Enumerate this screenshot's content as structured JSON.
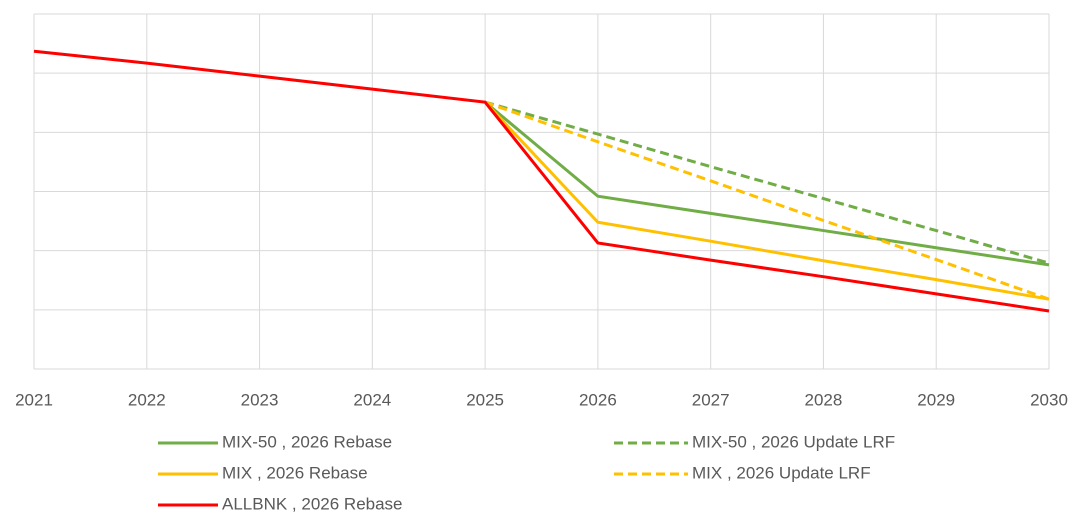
{
  "chart_data": {
    "type": "line",
    "x": [
      "2021",
      "2022",
      "2023",
      "2024",
      "2025",
      "2026",
      "2027",
      "2028",
      "2029",
      "2030"
    ],
    "series": [
      {
        "name": "MIX-50 , 2026 Rebase",
        "color": "#70ad47",
        "dashed": false,
        "values": [
          null,
          null,
          null,
          null,
          4.51,
          2.92,
          2.63,
          2.34,
          2.05,
          1.76
        ]
      },
      {
        "name": "MIX-50 , 2026 Update LRF",
        "color": "#70ad47",
        "dashed": true,
        "values": [
          null,
          null,
          null,
          null,
          4.51,
          3.97,
          3.42,
          2.88,
          2.34,
          1.79
        ]
      },
      {
        "name": "MIX , 2026 Rebase",
        "color": "#ffc000",
        "dashed": false,
        "values": [
          null,
          null,
          null,
          null,
          4.51,
          2.48,
          2.16,
          1.83,
          1.51,
          1.18
        ]
      },
      {
        "name": "MIX , 2026 Update LRF",
        "color": "#ffc000",
        "dashed": true,
        "values": [
          null,
          null,
          null,
          null,
          4.51,
          3.84,
          3.18,
          2.51,
          1.85,
          1.18
        ]
      },
      {
        "name": "ALLBNK , 2026 Rebase",
        "color": "#ff0000",
        "dashed": false,
        "values": [
          5.37,
          5.17,
          4.95,
          4.73,
          4.51,
          2.13,
          1.84,
          1.56,
          1.27,
          0.98
        ]
      }
    ],
    "ylim": [
      0,
      6
    ],
    "yticks": [
      0,
      1,
      2,
      3,
      4,
      5,
      6
    ],
    "grid": true
  }
}
